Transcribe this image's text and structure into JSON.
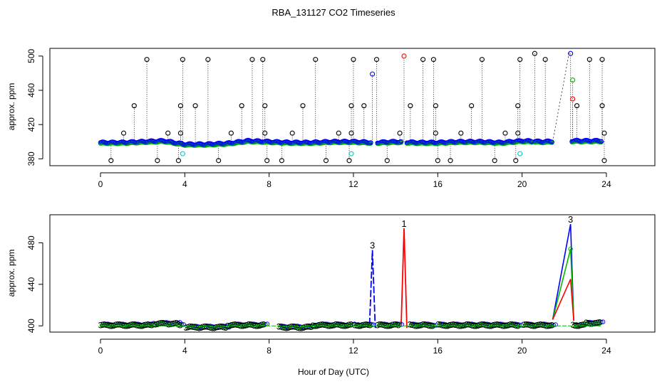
{
  "chart_data": {
    "title": "RBA_131127  CO2 Timeseries",
    "xlabel": "Hour of Day (UTC)",
    "colors": {
      "black": "#000000",
      "blue": "#0000ff",
      "green": "#00bb00",
      "red": "#ff0000",
      "cyan": "#00cccc"
    },
    "panels": [
      {
        "type": "scatter",
        "ylabel": "approx. ppm",
        "xlim": [
          -2.4,
          26.3
        ],
        "ylim": [
          372,
          509
        ],
        "x_ticks": [
          "0",
          "4",
          "8",
          "12",
          "16",
          "20",
          "24"
        ],
        "y_ticks": [
          "380",
          "420",
          "460",
          "500"
        ],
        "baseline": {
          "hours": [
            0,
            1,
            2,
            3,
            4,
            5,
            6,
            7,
            8,
            9,
            10,
            11,
            12,
            13,
            14,
            15,
            16,
            17,
            18,
            19,
            20,
            21,
            22,
            23,
            24
          ],
          "values": [
            399,
            399,
            400,
            401,
            397,
            397,
            398,
            401,
            400,
            399,
            399,
            400,
            400,
            399,
            400,
            399,
            399,
            400,
            400,
            399,
            401,
            400,
            401,
            401,
            401
          ]
        },
        "black_spikes": [
          [
            0.5,
            378
          ],
          [
            1.1,
            410
          ],
          [
            1.6,
            442
          ],
          [
            2.2,
            496
          ],
          [
            2.7,
            378
          ],
          [
            3.2,
            410
          ],
          [
            3.7,
            378
          ],
          [
            3.8,
            410
          ],
          [
            3.8,
            442
          ],
          [
            3.9,
            496
          ],
          [
            4.5,
            442
          ],
          [
            5.1,
            496
          ],
          [
            5.6,
            378
          ],
          [
            6.2,
            410
          ],
          [
            6.7,
            442
          ],
          [
            7.2,
            496
          ],
          [
            7.7,
            496
          ],
          [
            7.8,
            442
          ],
          [
            7.8,
            410
          ],
          [
            7.9,
            378
          ],
          [
            8.6,
            378
          ],
          [
            9.1,
            410
          ],
          [
            9.6,
            442
          ],
          [
            10.2,
            496
          ],
          [
            10.7,
            378
          ],
          [
            11.3,
            410
          ],
          [
            11.8,
            378
          ],
          [
            11.9,
            410
          ],
          [
            11.9,
            442
          ],
          [
            12.0,
            496
          ],
          [
            12.5,
            442
          ],
          [
            13.1,
            496
          ],
          [
            13.6,
            378
          ],
          [
            14.2,
            410
          ],
          [
            14.7,
            442
          ],
          [
            15.3,
            496
          ],
          [
            15.8,
            496
          ],
          [
            15.9,
            442
          ],
          [
            15.9,
            410
          ],
          [
            16.0,
            378
          ],
          [
            16.6,
            378
          ],
          [
            17.1,
            410
          ],
          [
            17.6,
            442
          ],
          [
            18.1,
            496
          ],
          [
            18.7,
            378
          ],
          [
            19.2,
            410
          ],
          [
            19.7,
            378
          ],
          [
            19.8,
            410
          ],
          [
            19.8,
            442
          ],
          [
            19.9,
            496
          ],
          [
            20.6,
            503
          ],
          [
            21.1,
            496
          ],
          [
            22.6,
            442
          ],
          [
            23.2,
            496
          ],
          [
            23.8,
            496
          ],
          [
            23.8,
            442
          ],
          [
            23.9,
            410
          ],
          [
            23.9,
            378
          ]
        ],
        "colored_points": [
          {
            "x": 12.9,
            "y": 479,
            "color": "blue"
          },
          {
            "x": 14.4,
            "y": 500,
            "color": "red"
          },
          {
            "x": 22.3,
            "y": 503,
            "color": "blue"
          },
          {
            "x": 22.4,
            "y": 472,
            "color": "green"
          },
          {
            "x": 22.4,
            "y": 450,
            "color": "red"
          },
          {
            "x": 3.9,
            "y": 386,
            "color": "cyan"
          },
          {
            "x": 11.9,
            "y": 386,
            "color": "cyan"
          },
          {
            "x": 19.9,
            "y": 386,
            "color": "cyan"
          }
        ],
        "gaps": [
          [
            12.85,
            13.1
          ],
          [
            14.3,
            14.5
          ],
          [
            20.5,
            20.6
          ],
          [
            21.45,
            22.35
          ]
        ]
      },
      {
        "type": "line",
        "ylabel": "approx. ppm",
        "xlim": [
          -2.4,
          26.3
        ],
        "ylim": [
          394,
          507
        ],
        "x_ticks": [
          "0",
          "4",
          "8",
          "12",
          "16",
          "20",
          "24"
        ],
        "y_ticks": [
          "400",
          "440",
          "480"
        ],
        "series": [
          {
            "label": "1",
            "color": "red",
            "peak": {
              "x": 14.4,
              "y": 494
            }
          },
          {
            "label": "3",
            "color": "blue",
            "peak": {
              "x": 12.9,
              "y": 473
            }
          },
          {
            "label": "3",
            "color": "blue",
            "peak": {
              "x": 22.3,
              "y": 498
            }
          }
        ],
        "ramp_end": {
          "green": 474,
          "red": 445
        },
        "gaps": [
          [
            3.8,
            4.0
          ],
          [
            7.8,
            8.4
          ],
          [
            11.9,
            12.05
          ],
          [
            12.85,
            13.1
          ],
          [
            14.2,
            14.6
          ],
          [
            15.8,
            16.0
          ],
          [
            19.8,
            20.0
          ],
          [
            21.45,
            22.35
          ]
        ]
      }
    ]
  }
}
